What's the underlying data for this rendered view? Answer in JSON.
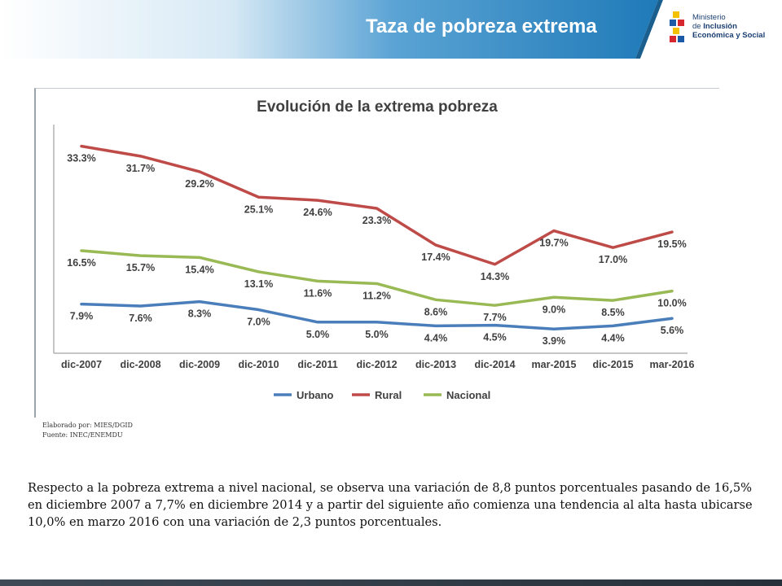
{
  "header": {
    "title": "Taza de pobreza extrema",
    "band_color": "#2d86c0",
    "logo": {
      "line1": "Ministerio",
      "line2_prefix": "de ",
      "line2_bold": "Inclusión",
      "line3": "Económica y Social"
    }
  },
  "chart_data": {
    "type": "line",
    "title": "Evolución de la extrema pobreza",
    "categories": [
      "dic-2007",
      "dic-2008",
      "dic-2009",
      "dic-2010",
      "dic-2011",
      "dic-2012",
      "dic-2013",
      "dic-2014",
      "mar-2015",
      "dic-2015",
      "mar-2016"
    ],
    "series": [
      {
        "name": "Urbano",
        "color": "#4a7ebb",
        "values": [
          7.9,
          7.6,
          8.3,
          7.0,
          5.0,
          5.0,
          4.4,
          4.5,
          3.9,
          4.4,
          5.6
        ],
        "labels": [
          "7.9%",
          "7.6%",
          "8.3%",
          "7.0%",
          "5.0%",
          "5.0%",
          "4.4%",
          "4.5%",
          "3.9%",
          "4.4%",
          "5.6%"
        ]
      },
      {
        "name": "Rural",
        "color": "#be4b48",
        "values": [
          33.3,
          31.7,
          29.2,
          25.1,
          24.6,
          23.3,
          17.4,
          14.3,
          19.7,
          17.0,
          19.5
        ],
        "labels": [
          "33.3%",
          "31.7%",
          "29.2%",
          "25.1%",
          "24.6%",
          "23.3%",
          "17.4%",
          "14.3%",
          "19.7%",
          "17.0%",
          "19.5%"
        ]
      },
      {
        "name": "Nacional",
        "color": "#98b954",
        "values": [
          16.5,
          15.7,
          15.4,
          13.1,
          11.6,
          11.2,
          8.6,
          7.7,
          9.0,
          8.5,
          10.0
        ],
        "labels": [
          "16.5%",
          "15.7%",
          "15.4%",
          "13.1%",
          "11.6%",
          "11.2%",
          "8.6%",
          "7.7%",
          "9.0%",
          "8.5%",
          "10.0%"
        ]
      }
    ],
    "legend_position": "bottom",
    "grid": false
  },
  "credits": {
    "line1": "Elaborado por: MIES/DGID",
    "line2": "Fuente: INEC/ENEMDU"
  },
  "body": {
    "paragraph": "Respecto a la pobreza extrema a nivel nacional, se observa una variación de 8,8 puntos porcentuales pasando de 16,5% en diciembre 2007 a 7,7% en diciembre 2014 y a partir del siguiente año comienza una tendencia al alta hasta ubicarse 10,0% en marzo 2016 con una variación de 2,3 puntos porcentuales."
  }
}
